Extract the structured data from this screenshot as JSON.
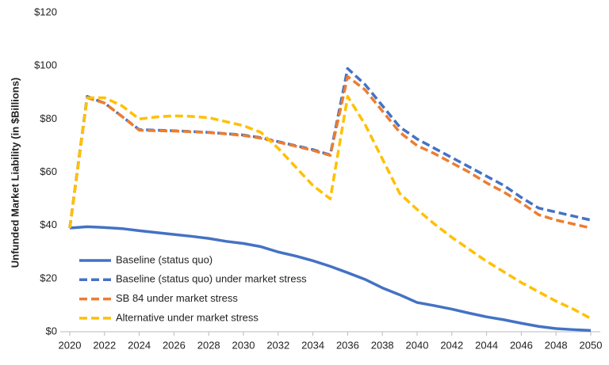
{
  "chart_data": {
    "type": "line",
    "y_label": "Unfunded Market Liability (in $Billions)",
    "x": [
      2020,
      2021,
      2022,
      2023,
      2024,
      2025,
      2026,
      2027,
      2028,
      2029,
      2030,
      2031,
      2032,
      2033,
      2034,
      2035,
      2036,
      2037,
      2038,
      2039,
      2040,
      2041,
      2042,
      2043,
      2044,
      2045,
      2046,
      2047,
      2048,
      2049,
      2050
    ],
    "xlim": [
      2020,
      2050
    ],
    "xticks": [
      2020,
      2022,
      2024,
      2026,
      2028,
      2030,
      2032,
      2034,
      2036,
      2038,
      2040,
      2042,
      2044,
      2046,
      2048,
      2050
    ],
    "ylim": [
      0,
      120
    ],
    "yticks": [
      {
        "value": 0,
        "label": "$0"
      },
      {
        "value": 20,
        "label": "$20"
      },
      {
        "value": 40,
        "label": "$40"
      },
      {
        "value": 60,
        "label": "$60"
      },
      {
        "value": 80,
        "label": "$80"
      },
      {
        "value": 100,
        "label": "$100"
      },
      {
        "value": 120,
        "label": "$120"
      }
    ],
    "grid": false,
    "legend": "lower-left",
    "series": [
      {
        "name": "Baseline (status quo)",
        "color": "#4472c4",
        "dashed": false,
        "values": [
          39,
          39.5,
          39.2,
          38.8,
          38,
          37.3,
          36.6,
          35.9,
          35.1,
          34,
          33.2,
          32,
          30,
          28.5,
          26.7,
          24.6,
          22.2,
          19.7,
          16.5,
          13.9,
          11,
          9.8,
          8.5,
          7,
          5.6,
          4.5,
          3.2,
          2,
          1.2,
          0.8,
          0.5
        ]
      },
      {
        "name": "Baseline (status quo) under market stress",
        "color": "#4472c4",
        "dashed": true,
        "values": [
          39,
          88.5,
          86,
          81,
          76,
          75.8,
          75.6,
          75.3,
          75,
          74.5,
          74,
          73,
          71.5,
          70,
          68.5,
          66.5,
          99,
          93,
          85,
          77,
          72.5,
          69,
          65.5,
          62,
          58.5,
          55,
          50.5,
          46.5,
          45,
          43.5,
          42
        ]
      },
      {
        "name": "SB 84 under market stress",
        "color": "#ed7d31",
        "dashed": true,
        "values": [
          39,
          88,
          86,
          81,
          75.8,
          75.6,
          75.5,
          75.2,
          74.9,
          74.4,
          73.8,
          72.8,
          71.3,
          69.8,
          68.2,
          66.3,
          96,
          91,
          83,
          75,
          70,
          67,
          63.5,
          60,
          56,
          52.5,
          48.5,
          44,
          42,
          40.5,
          39
        ]
      },
      {
        "name": "Alternative under market stress",
        "color": "#ffc000",
        "dashed": true,
        "values": [
          39,
          88,
          88,
          85,
          80,
          80.8,
          81.2,
          81,
          80.5,
          79,
          77.5,
          75,
          69,
          62,
          55,
          50,
          88.5,
          78,
          65,
          52,
          46,
          40.5,
          35.5,
          31,
          26.5,
          22.5,
          18.5,
          15,
          11.5,
          8.5,
          5
        ]
      }
    ]
  }
}
